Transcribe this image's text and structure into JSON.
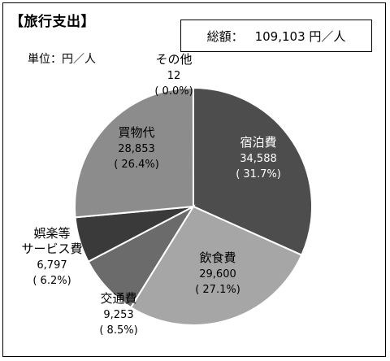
{
  "header": {
    "title": "【旅行支出】",
    "unit": "単位：円／人",
    "total_label": "総額：",
    "total_value": "109,103 円／人"
  },
  "chart_data": {
    "type": "pie",
    "title": "旅行支出",
    "unit": "円／人",
    "total": 109103,
    "start_angle_deg": 0,
    "direction": "clockwise",
    "slices": [
      {
        "label": "宿泊費",
        "value": 34588,
        "value_text": "34,588",
        "pct_text": "( 31.7%)",
        "color": "#4d4d4d",
        "text_color": "#ffffff"
      },
      {
        "label": "飲食費",
        "value": 29600,
        "value_text": "29,600",
        "pct_text": "( 27.1%)",
        "color": "#a6a6a6",
        "text_color": "#000000"
      },
      {
        "label": "交通費",
        "value": 9253,
        "value_text": "9,253",
        "pct_text": "( 8.5%)",
        "color": "#6b6b6b",
        "text_color": "#000000"
      },
      {
        "label": "娯楽等サービス費",
        "label_lines": [
          "娯楽等",
          "サービス費"
        ],
        "value": 6797,
        "value_text": "6,797",
        "pct_text": "( 6.2%)",
        "color": "#3a3a3a",
        "text_color": "#000000"
      },
      {
        "label": "買物代",
        "value": 28853,
        "value_text": "28,853",
        "pct_text": "( 26.4%)",
        "color": "#8c8c8c",
        "text_color": "#000000"
      },
      {
        "label": "その他",
        "value": 12,
        "value_text": "12",
        "pct_text": "( 0.0%)",
        "color": "#d9d9d9",
        "text_color": "#000000"
      }
    ]
  }
}
